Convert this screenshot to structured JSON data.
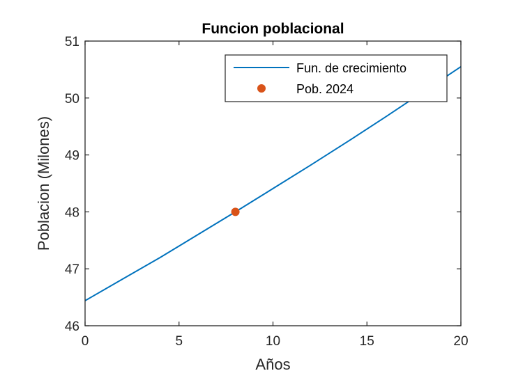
{
  "chart_data": {
    "type": "line",
    "title": "Funcion poblacional",
    "xlabel": "Años",
    "ylabel": "Poblacion (Milones)",
    "xlim": [
      0,
      20
    ],
    "ylim": [
      46,
      51
    ],
    "xticks": [
      0,
      5,
      10,
      15,
      20
    ],
    "yticks": [
      46,
      47,
      48,
      49,
      50,
      51
    ],
    "grid": false,
    "legend_position": "top-right",
    "series": [
      {
        "name": "Fun. de crecimiento",
        "kind": "line",
        "color": "#0072BD",
        "x": [
          0,
          2,
          4,
          6,
          8,
          10,
          12,
          14,
          16,
          18,
          20
        ],
        "y": [
          46.44,
          46.82,
          47.2,
          47.6,
          48.0,
          48.41,
          48.82,
          49.24,
          49.67,
          50.11,
          50.55
        ]
      },
      {
        "name": "Pob. 2024",
        "kind": "scatter",
        "color": "#D95319",
        "x": [
          8
        ],
        "y": [
          48.0
        ]
      }
    ]
  }
}
